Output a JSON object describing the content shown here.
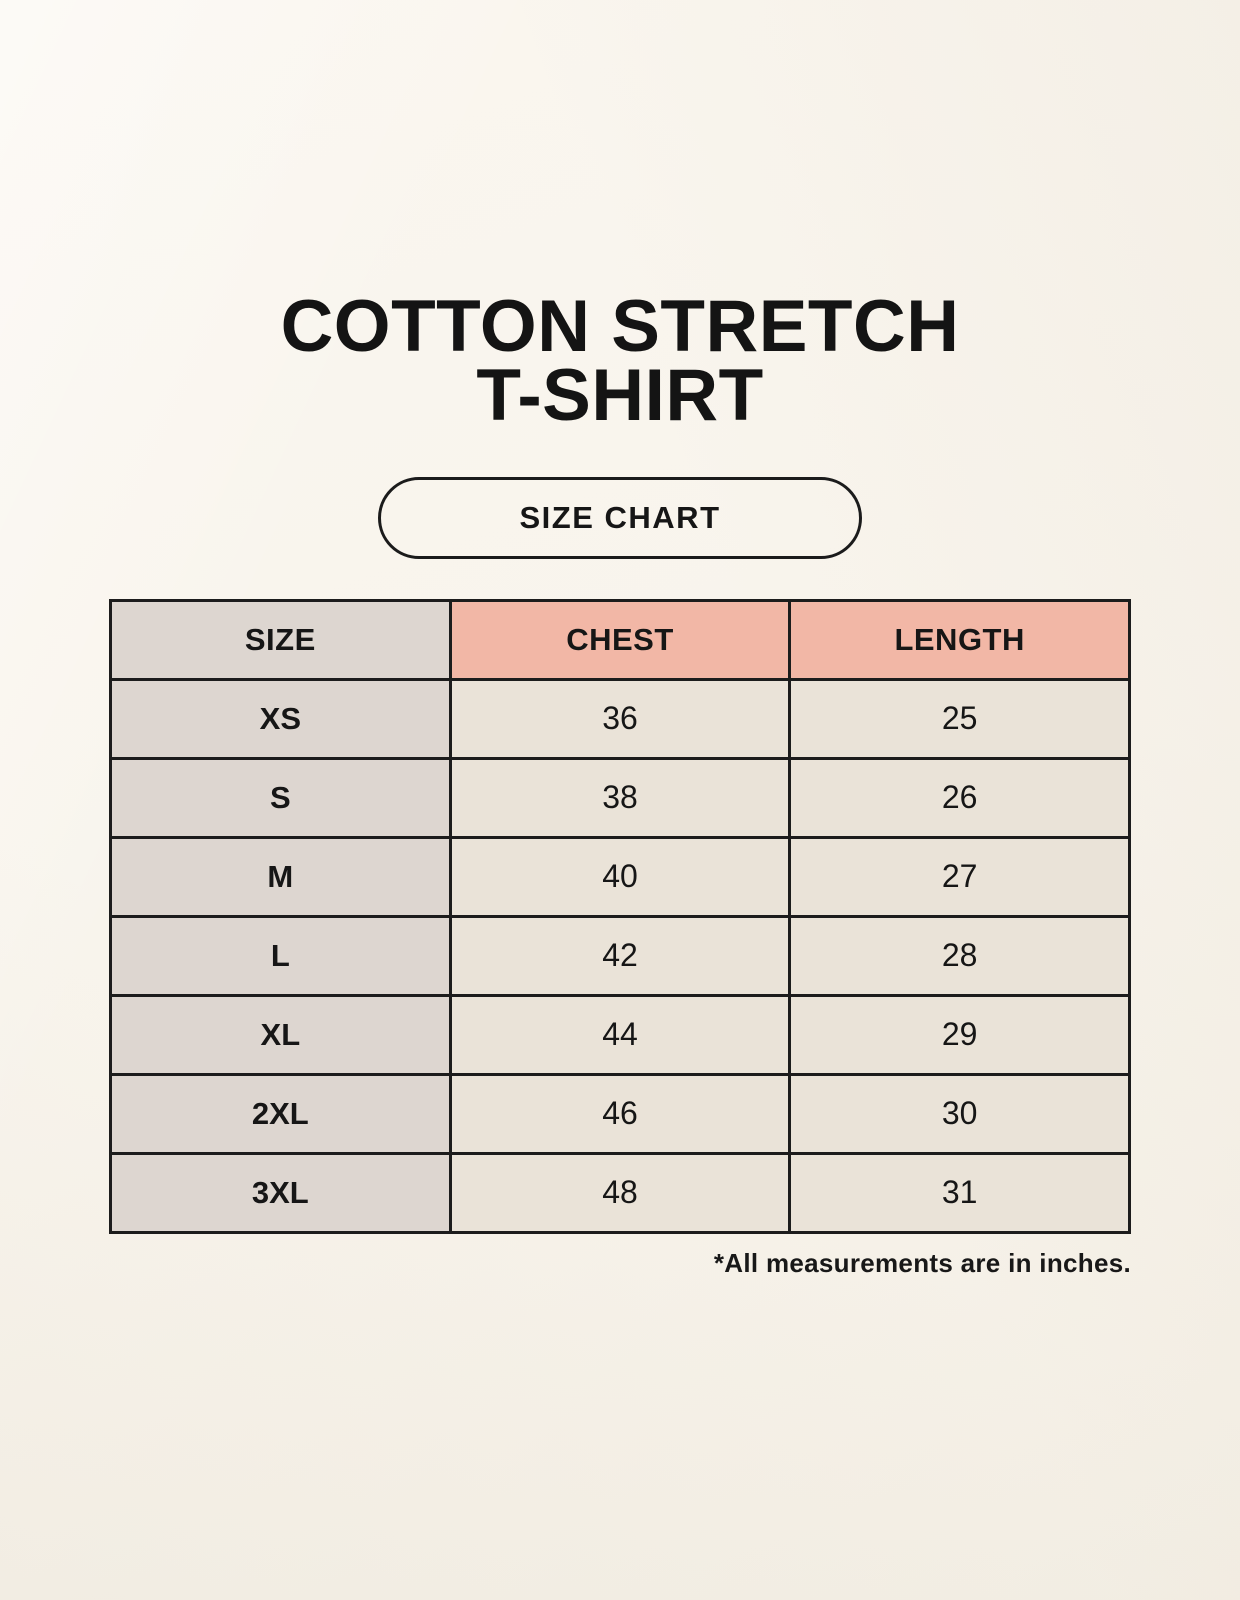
{
  "title": {
    "line1": "COTTON STRETCH",
    "line2": "T-SHIRT"
  },
  "badge": {
    "label": "SIZE CHART"
  },
  "footnote": "*All measurements are in inches.",
  "colors": {
    "page_background": "#f8f4ec",
    "size_column_bg": "#ddd6d0",
    "header_accent_bg": "#f2b7a6",
    "data_cell_bg": "#eae3d8",
    "table_border": "#1c1c1c",
    "text": "#161616"
  },
  "chart_data": {
    "type": "table",
    "title": "Cotton Stretch T-Shirt Size Chart",
    "columns": [
      "SIZE",
      "CHEST",
      "LENGTH"
    ],
    "rows": [
      [
        "XS",
        "36",
        "25"
      ],
      [
        "S",
        "38",
        "26"
      ],
      [
        "M",
        "40",
        "27"
      ],
      [
        "L",
        "42",
        "28"
      ],
      [
        "XL",
        "44",
        "29"
      ],
      [
        "2XL",
        "46",
        "30"
      ],
      [
        "3XL",
        "48",
        "31"
      ]
    ],
    "units": "inches",
    "layout": "3-column table, first column gray, header accent salmon, grid borders black"
  }
}
